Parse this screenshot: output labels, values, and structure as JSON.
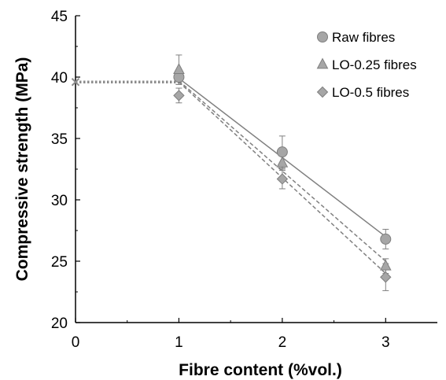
{
  "chart_data": {
    "type": "scatter",
    "xlabel": "Fibre content (%vol.)",
    "ylabel": "Compressive strength (MPa)",
    "xlim": [
      0,
      3.5
    ],
    "ylim": [
      20,
      45
    ],
    "xticks": [
      0,
      1,
      2,
      3
    ],
    "yticks": [
      20,
      25,
      30,
      35,
      40,
      45
    ],
    "xtick_labels": [
      "0",
      "1",
      "2",
      "3"
    ],
    "ytick_labels": [
      "20",
      "25",
      "30",
      "35",
      "40",
      "45"
    ],
    "grid": false,
    "legend_position": "top-right",
    "plain_value": {
      "x": 0,
      "y": 39.6,
      "marker": "x"
    },
    "plain_reference_line": {
      "x": [
        0,
        1
      ],
      "y": [
        39.6,
        39.6
      ],
      "style": "dotted"
    },
    "series": [
      {
        "name": "Raw fibres",
        "marker": "circle",
        "x": [
          1,
          2,
          3
        ],
        "y": [
          40.0,
          33.9,
          26.8
        ],
        "error": [
          0.6,
          1.3,
          0.8
        ],
        "trendline": {
          "x": [
            1,
            3
          ],
          "y": [
            39.9,
            27.0
          ],
          "style": "solid"
        }
      },
      {
        "name": "LO-0.25 fibres",
        "marker": "triangle",
        "x": [
          1,
          2,
          3
        ],
        "y": [
          40.6,
          33.0,
          24.6
        ],
        "error": [
          1.2,
          0.6,
          0.6
        ],
        "trendline": {
          "x": [
            1,
            3
          ],
          "y": [
            39.7,
            25.0
          ],
          "style": "dashed"
        }
      },
      {
        "name": "LO-0.5 fibres",
        "marker": "diamond",
        "x": [
          1,
          2,
          3
        ],
        "y": [
          38.5,
          31.7,
          23.7
        ],
        "error": [
          0.6,
          0.8,
          1.1
        ],
        "trendline": {
          "x": [
            1,
            3
          ],
          "y": [
            39.6,
            24.0
          ],
          "style": "dashed"
        }
      }
    ],
    "colors": {
      "marker_fill": "#a6a6a6",
      "marker_stroke": "#7f7f7f",
      "line": "#808080",
      "axis": "#000000"
    }
  }
}
